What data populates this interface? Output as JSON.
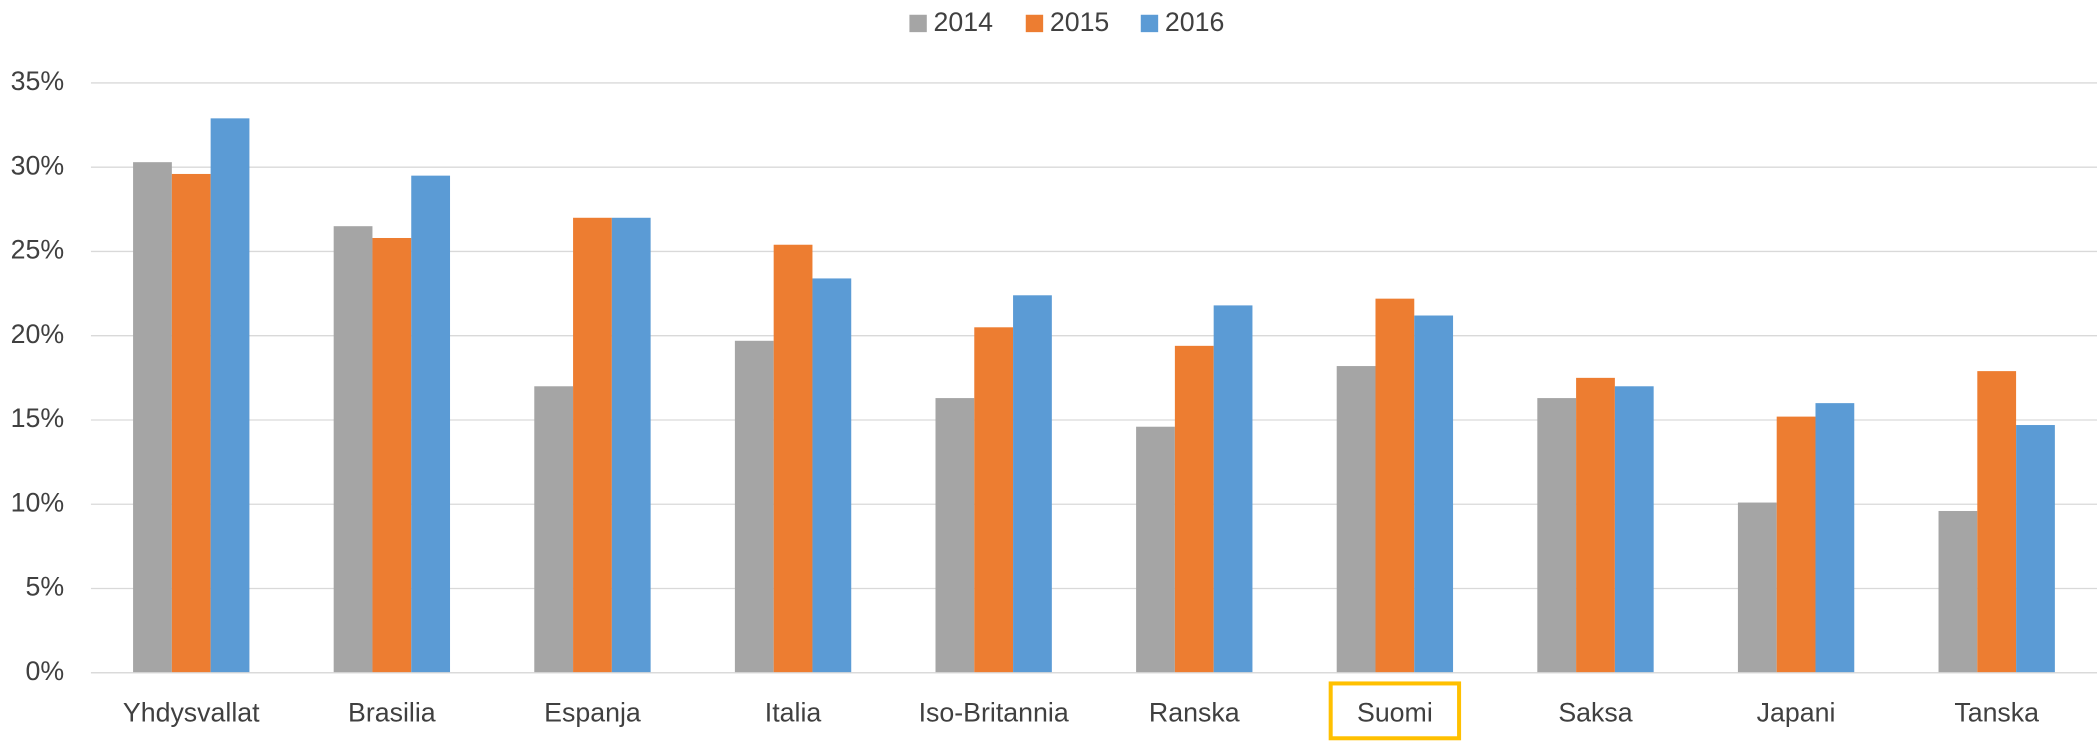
{
  "chart_data": {
    "type": "bar",
    "categories": [
      "Yhdysvallat",
      "Brasilia",
      "Espanja",
      "Italia",
      "Iso-Britannia",
      "Ranska",
      "Suomi",
      "Saksa",
      "Japani",
      "Tanska"
    ],
    "series": [
      {
        "name": "2014",
        "color": "#a5a5a5",
        "values": [
          30.3,
          26.5,
          17.0,
          19.7,
          16.3,
          14.6,
          18.2,
          16.3,
          10.1,
          9.6
        ]
      },
      {
        "name": "2015",
        "color": "#ed7d31",
        "values": [
          29.6,
          25.8,
          27.0,
          25.4,
          20.5,
          19.4,
          22.2,
          17.5,
          15.2,
          17.9
        ]
      },
      {
        "name": "2016",
        "color": "#5b9bd5",
        "values": [
          32.9,
          29.5,
          27.0,
          23.4,
          22.4,
          21.8,
          21.2,
          17.0,
          16.0,
          14.7
        ]
      }
    ],
    "ylim": [
      0,
      35
    ],
    "yticks": [
      {
        "value": 0,
        "label": "0%"
      },
      {
        "value": 5,
        "label": "5%"
      },
      {
        "value": 10,
        "label": "10%"
      },
      {
        "value": 15,
        "label": "15%"
      },
      {
        "value": 20,
        "label": "20%"
      },
      {
        "value": 25,
        "label": "25%"
      },
      {
        "value": 30,
        "label": "30%"
      },
      {
        "value": 35,
        "label": "35%"
      }
    ],
    "grid": true,
    "legend": "top"
  }
}
